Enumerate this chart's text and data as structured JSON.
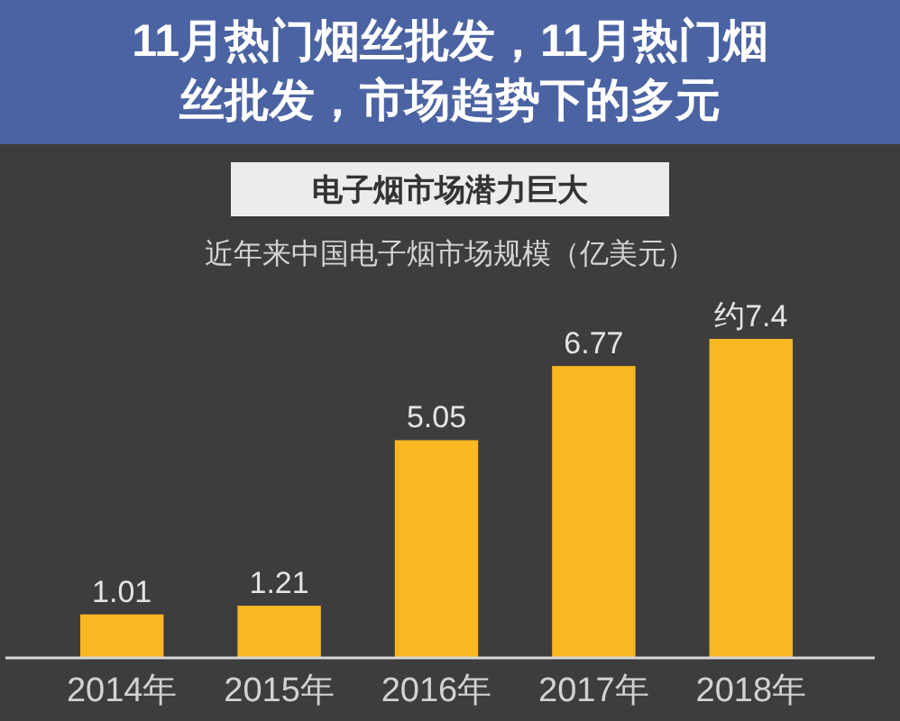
{
  "chart_data": {
    "type": "bar",
    "title": "电子烟市场潜力巨大",
    "subtitle": "近年来中国电子烟市场规模（亿美元）",
    "categories": [
      "2014年",
      "2015年",
      "2016年",
      "2017年",
      "2018年"
    ],
    "values": [
      1.01,
      1.21,
      5.05,
      6.77,
      7.4
    ],
    "value_labels": [
      "1.01",
      "1.21",
      "5.05",
      "6.77",
      "约7.4"
    ],
    "color": "#f9b722",
    "tick_labels": "x",
    "annotations": [
      "11月热门烟丝批发，11月热门烟丝批发，市场趋势下的多元"
    ]
  }
}
